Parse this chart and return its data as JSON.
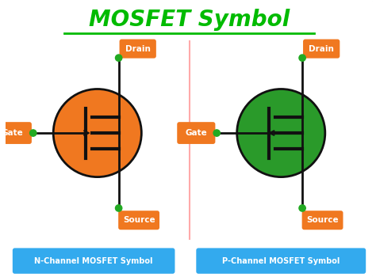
{
  "title": "MOSFET Symbol",
  "title_color": "#00bb00",
  "title_fontsize": 20,
  "bg_color": "#ffffff",
  "border_color": "#55ccee",
  "n_channel_label": "N-Channel MOSFET Symbol",
  "p_channel_label": "P-Channel MOSFET Symbol",
  "label_bg": "#33aaee",
  "label_fg": "#ffffff",
  "orange": "#f07820",
  "green": "#2a9a2a",
  "gate_label": "Gate",
  "drain_label": "Drain",
  "source_label": "Source",
  "node_color": "#22aa22",
  "line_color": "#111111",
  "divider_color": "#ffaaaa"
}
